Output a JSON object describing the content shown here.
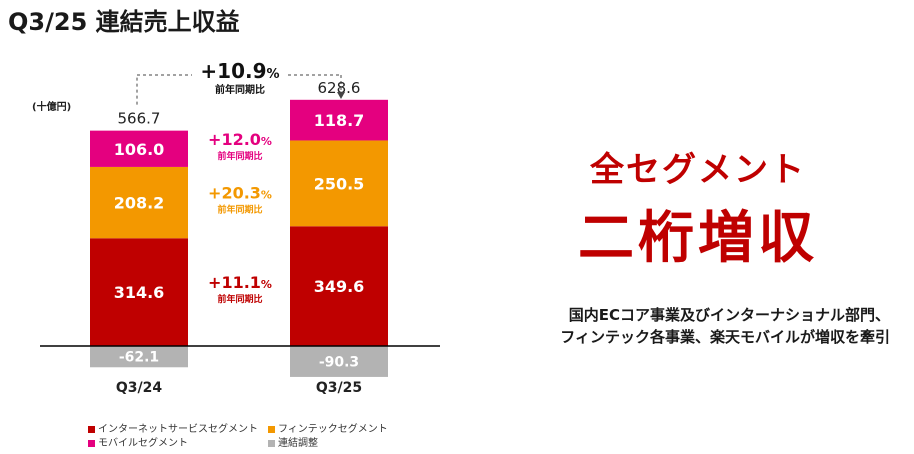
{
  "title": "Q3/25 連結売上収益",
  "unit": "(十億円)",
  "headline": {
    "line1": "全セグメント",
    "line2": "二桁増収"
  },
  "description": {
    "line1": "国内ECコア事業及びインターナショナル部門、",
    "line2": "フィンテック各事業、楽天モバイルが増収を牽引"
  },
  "colors": {
    "internet": "#bf0000",
    "fintech": "#f39800",
    "mobile": "#e4007f",
    "adjust": "#b3b3b3"
  },
  "chart_data": {
    "type": "bar",
    "stacked": true,
    "categories": [
      "Q3/24",
      "Q3/25"
    ],
    "totals": [
      "566.7",
      "628.6"
    ],
    "series": [
      {
        "key": "internet",
        "name": "インターネットサービスセグメント",
        "values": [
          314.6,
          349.6
        ],
        "labels": [
          "314.6",
          "349.6"
        ]
      },
      {
        "key": "fintech",
        "name": "フィンテックセグメント",
        "values": [
          208.2,
          250.5
        ],
        "labels": [
          "208.2",
          "250.5"
        ]
      },
      {
        "key": "mobile",
        "name": "モバイルセグメント",
        "values": [
          106.0,
          118.7
        ],
        "labels": [
          "106.0",
          "118.7"
        ]
      },
      {
        "key": "adjust",
        "name": "連結調整",
        "values": [
          -62.1,
          -90.3
        ],
        "labels": [
          "-62.1",
          "-90.3"
        ]
      }
    ],
    "growth": {
      "total": {
        "value": "+10.9",
        "unit": "%",
        "label": "前年同期比"
      },
      "mobile": {
        "value": "+12.0",
        "unit": "%",
        "label": "前年同期比"
      },
      "fintech": {
        "value": "+20.3",
        "unit": "%",
        "label": "前年同期比"
      },
      "internet": {
        "value": "+11.1",
        "unit": "%",
        "label": "前年同期比"
      }
    }
  }
}
